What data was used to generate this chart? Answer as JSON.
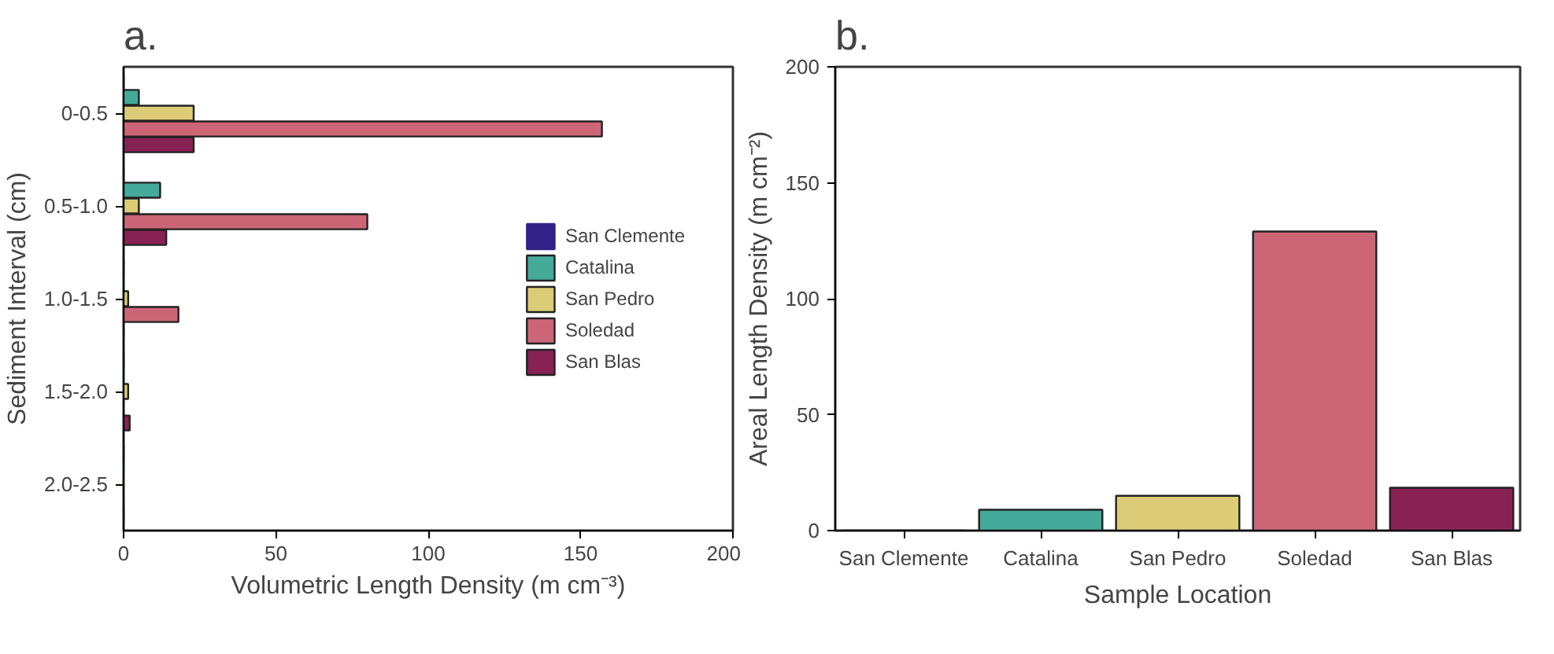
{
  "chart_data": [
    {
      "type": "bar",
      "orientation": "horizontal",
      "title": "a.",
      "xlabel": "Volumetric Length Density (m cm⁻³)",
      "ylabel": "Sediment Interval (cm)",
      "categories": [
        "0-0.5",
        "0.5-1.0",
        "1.0-1.5",
        "1.5-2.0",
        "2.0-2.5"
      ],
      "series": [
        {
          "name": "San Clemente",
          "color": "#332288",
          "values": [
            0,
            0,
            0,
            0,
            0
          ]
        },
        {
          "name": "Catalina",
          "color": "#44aa99",
          "values": [
            5,
            12,
            0,
            0,
            0
          ]
        },
        {
          "name": "San Pedro",
          "color": "#ddcc77",
          "values": [
            23,
            5,
            1.5,
            1.5,
            0
          ]
        },
        {
          "name": "Soledad",
          "color": "#cc6677",
          "values": [
            157,
            80,
            18,
            0,
            0
          ]
        },
        {
          "name": "San Blas",
          "color": "#882255",
          "values": [
            23,
            14,
            0,
            2,
            0
          ]
        }
      ],
      "xlim": [
        0,
        200
      ],
      "xticks": [
        0,
        50,
        100,
        150,
        200
      ],
      "legend": "right",
      "grid": false
    },
    {
      "type": "bar",
      "title": "b.",
      "xlabel": "Sample Location",
      "ylabel": "Areal Length Density (m cm⁻²)",
      "categories": [
        "San Clemente",
        "Catalina",
        "San Pedro",
        "Soledad",
        "San Blas"
      ],
      "values": [
        0,
        9,
        15,
        129,
        18.5
      ],
      "colors": [
        "#332288",
        "#44aa99",
        "#ddcc77",
        "#cc6677",
        "#882255"
      ],
      "ylim": [
        0,
        200
      ],
      "yticks": [
        0,
        50,
        100,
        150,
        200
      ],
      "grid": false
    }
  ]
}
